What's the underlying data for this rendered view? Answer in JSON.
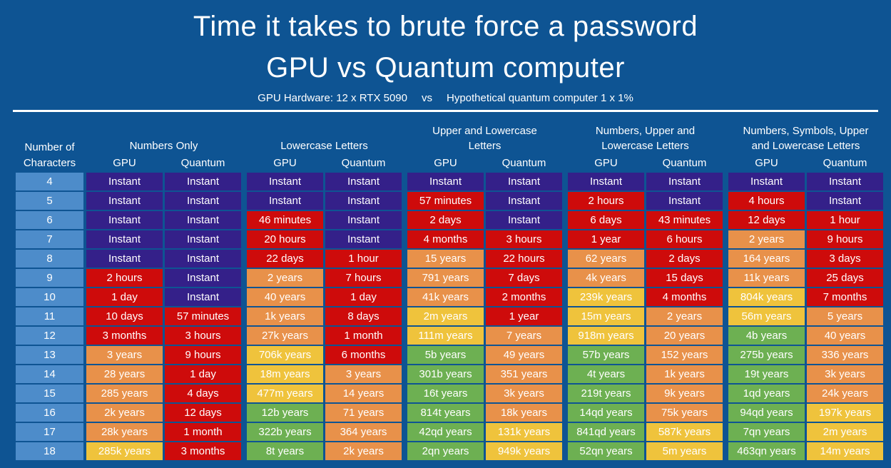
{
  "title": {
    "line1": "Time it takes to brute force a password",
    "line2": "GPU vs Quantum computer"
  },
  "subtitle": {
    "left": "GPU Hardware: 12 x RTX 5090",
    "vs": "vs",
    "right": "Hypothetical quantum computer 1 x 1%"
  },
  "colors": {
    "background": "#0E5493",
    "row_header": "#4D8CCA",
    "instant": "#342089",
    "red": "#CE0B0B",
    "orange": "#E8914A",
    "yellow": "#EFC33C",
    "green": "#6DB052",
    "text": "#FFFFFF"
  },
  "chart_data": {
    "type": "table",
    "title": "Time it takes to brute force a password — GPU vs Quantum computer",
    "row_header_lines": [
      "Number of",
      "Characters"
    ],
    "column_groups": [
      {
        "label_lines": [
          "Numbers Only"
        ],
        "columns": [
          "GPU",
          "Quantum"
        ]
      },
      {
        "label_lines": [
          "Lowercase Letters"
        ],
        "columns": [
          "GPU",
          "Quantum"
        ]
      },
      {
        "label_lines": [
          "Upper and Lowercase",
          "Letters"
        ],
        "columns": [
          "GPU",
          "Quantum"
        ]
      },
      {
        "label_lines": [
          "Numbers, Upper and",
          "Lowercase Letters"
        ],
        "columns": [
          "GPU",
          "Quantum"
        ]
      },
      {
        "label_lines": [
          "Numbers, Symbols, Upper",
          "and Lowercase Letters"
        ],
        "columns": [
          "GPU",
          "Quantum"
        ]
      }
    ],
    "rows": [
      {
        "characters": "4",
        "cells": [
          [
            "Instant",
            "instant"
          ],
          [
            "Instant",
            "instant"
          ],
          [
            "Instant",
            "instant"
          ],
          [
            "Instant",
            "instant"
          ],
          [
            "Instant",
            "instant"
          ],
          [
            "Instant",
            "instant"
          ],
          [
            "Instant",
            "instant"
          ],
          [
            "Instant",
            "instant"
          ],
          [
            "Instant",
            "instant"
          ],
          [
            "Instant",
            "instant"
          ]
        ]
      },
      {
        "characters": "5",
        "cells": [
          [
            "Instant",
            "instant"
          ],
          [
            "Instant",
            "instant"
          ],
          [
            "Instant",
            "instant"
          ],
          [
            "Instant",
            "instant"
          ],
          [
            "57 minutes",
            "red"
          ],
          [
            "Instant",
            "instant"
          ],
          [
            "2 hours",
            "red"
          ],
          [
            "Instant",
            "instant"
          ],
          [
            "4 hours",
            "red"
          ],
          [
            "Instant",
            "instant"
          ]
        ]
      },
      {
        "characters": "6",
        "cells": [
          [
            "Instant",
            "instant"
          ],
          [
            "Instant",
            "instant"
          ],
          [
            "46 minutes",
            "red"
          ],
          [
            "Instant",
            "instant"
          ],
          [
            "2 days",
            "red"
          ],
          [
            "Instant",
            "instant"
          ],
          [
            "6 days",
            "red"
          ],
          [
            "43 minutes",
            "red"
          ],
          [
            "12 days",
            "red"
          ],
          [
            "1 hour",
            "red"
          ]
        ]
      },
      {
        "characters": "7",
        "cells": [
          [
            "Instant",
            "instant"
          ],
          [
            "Instant",
            "instant"
          ],
          [
            "20 hours",
            "red"
          ],
          [
            "Instant",
            "instant"
          ],
          [
            "4 months",
            "red"
          ],
          [
            "3 hours",
            "red"
          ],
          [
            "1 year",
            "red"
          ],
          [
            "6 hours",
            "red"
          ],
          [
            "2 years",
            "orange"
          ],
          [
            "9 hours",
            "red"
          ]
        ]
      },
      {
        "characters": "8",
        "cells": [
          [
            "Instant",
            "instant"
          ],
          [
            "Instant",
            "instant"
          ],
          [
            "22 days",
            "red"
          ],
          [
            "1 hour",
            "red"
          ],
          [
            "15 years",
            "orange"
          ],
          [
            "22 hours",
            "red"
          ],
          [
            "62 years",
            "orange"
          ],
          [
            "2 days",
            "red"
          ],
          [
            "164 years",
            "orange"
          ],
          [
            "3 days",
            "red"
          ]
        ]
      },
      {
        "characters": "9",
        "cells": [
          [
            "2 hours",
            "red"
          ],
          [
            "Instant",
            "instant"
          ],
          [
            "2 years",
            "orange"
          ],
          [
            "7 hours",
            "red"
          ],
          [
            "791 years",
            "orange"
          ],
          [
            "7 days",
            "red"
          ],
          [
            "4k years",
            "orange"
          ],
          [
            "15 days",
            "red"
          ],
          [
            "11k years",
            "orange"
          ],
          [
            "25 days",
            "red"
          ]
        ]
      },
      {
        "characters": "10",
        "cells": [
          [
            "1 day",
            "red"
          ],
          [
            "Instant",
            "instant"
          ],
          [
            "40 years",
            "orange"
          ],
          [
            "1 day",
            "red"
          ],
          [
            "41k years",
            "orange"
          ],
          [
            "2 months",
            "red"
          ],
          [
            "239k years",
            "yellow"
          ],
          [
            "4 months",
            "red"
          ],
          [
            "804k years",
            "yellow"
          ],
          [
            "7 months",
            "red"
          ]
        ]
      },
      {
        "characters": "11",
        "cells": [
          [
            "10 days",
            "red"
          ],
          [
            "57 minutes",
            "red"
          ],
          [
            "1k years",
            "orange"
          ],
          [
            "8 days",
            "red"
          ],
          [
            "2m years",
            "yellow"
          ],
          [
            "1 year",
            "red"
          ],
          [
            "15m years",
            "yellow"
          ],
          [
            "2 years",
            "orange"
          ],
          [
            "56m years",
            "yellow"
          ],
          [
            "5 years",
            "orange"
          ]
        ]
      },
      {
        "characters": "12",
        "cells": [
          [
            "3 months",
            "red"
          ],
          [
            "3 hours",
            "red"
          ],
          [
            "27k years",
            "orange"
          ],
          [
            "1 month",
            "red"
          ],
          [
            "111m years",
            "yellow"
          ],
          [
            "7 years",
            "orange"
          ],
          [
            "918m years",
            "yellow"
          ],
          [
            "20 years",
            "orange"
          ],
          [
            "4b years",
            "green"
          ],
          [
            "40 years",
            "orange"
          ]
        ]
      },
      {
        "characters": "13",
        "cells": [
          [
            "3 years",
            "orange"
          ],
          [
            "9 hours",
            "red"
          ],
          [
            "706k years",
            "yellow"
          ],
          [
            "6 months",
            "red"
          ],
          [
            "5b years",
            "green"
          ],
          [
            "49 years",
            "orange"
          ],
          [
            "57b years",
            "green"
          ],
          [
            "152 years",
            "orange"
          ],
          [
            "275b years",
            "green"
          ],
          [
            "336 years",
            "orange"
          ]
        ]
      },
      {
        "characters": "14",
        "cells": [
          [
            "28 years",
            "orange"
          ],
          [
            "1 day",
            "red"
          ],
          [
            "18m years",
            "yellow"
          ],
          [
            "3 years",
            "orange"
          ],
          [
            "301b years",
            "green"
          ],
          [
            "351 years",
            "orange"
          ],
          [
            "4t years",
            "green"
          ],
          [
            "1k years",
            "orange"
          ],
          [
            "19t years",
            "green"
          ],
          [
            "3k years",
            "orange"
          ]
        ]
      },
      {
        "characters": "15",
        "cells": [
          [
            "285 years",
            "orange"
          ],
          [
            "4 days",
            "red"
          ],
          [
            "477m years",
            "yellow"
          ],
          [
            "14 years",
            "orange"
          ],
          [
            "16t years",
            "green"
          ],
          [
            "3k years",
            "orange"
          ],
          [
            "219t years",
            "green"
          ],
          [
            "9k years",
            "orange"
          ],
          [
            "1qd years",
            "green"
          ],
          [
            "24k years",
            "orange"
          ]
        ]
      },
      {
        "characters": "16",
        "cells": [
          [
            "2k years",
            "orange"
          ],
          [
            "12 days",
            "red"
          ],
          [
            "12b years",
            "green"
          ],
          [
            "71 years",
            "orange"
          ],
          [
            "814t years",
            "green"
          ],
          [
            "18k years",
            "orange"
          ],
          [
            "14qd years",
            "green"
          ],
          [
            "75k years",
            "orange"
          ],
          [
            "94qd years",
            "green"
          ],
          [
            "197k years",
            "yellow"
          ]
        ]
      },
      {
        "characters": "17",
        "cells": [
          [
            "28k years",
            "orange"
          ],
          [
            "1 month",
            "red"
          ],
          [
            "322b years",
            "green"
          ],
          [
            "364 years",
            "orange"
          ],
          [
            "42qd years",
            "green"
          ],
          [
            "131k years",
            "yellow"
          ],
          [
            "841qd years",
            "green"
          ],
          [
            "587k years",
            "yellow"
          ],
          [
            "7qn years",
            "green"
          ],
          [
            "2m years",
            "yellow"
          ]
        ]
      },
      {
        "characters": "18",
        "cells": [
          [
            "285k years",
            "yellow"
          ],
          [
            "3 months",
            "red"
          ],
          [
            "8t years",
            "green"
          ],
          [
            "2k years",
            "orange"
          ],
          [
            "2qn years",
            "green"
          ],
          [
            "949k years",
            "yellow"
          ],
          [
            "52qn years",
            "green"
          ],
          [
            "5m years",
            "yellow"
          ],
          [
            "463qn years",
            "green"
          ],
          [
            "14m years",
            "yellow"
          ]
        ]
      }
    ]
  }
}
